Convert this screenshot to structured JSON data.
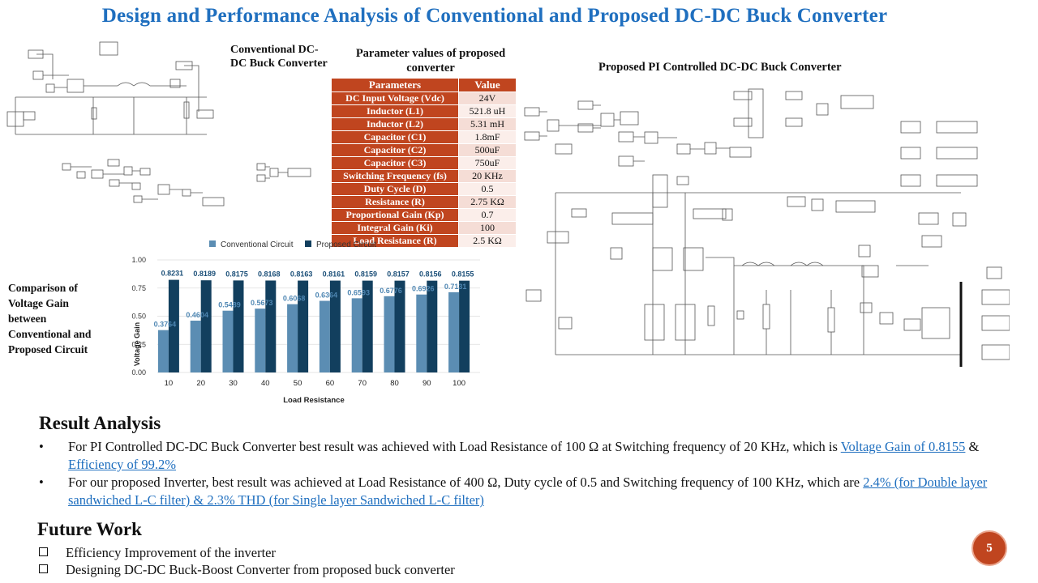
{
  "title": "Design and Performance Analysis of Conventional and Proposed DC-DC Buck Converter",
  "conventional_caption": "Conventional DC-DC Buck Converter",
  "proposed_caption": "Proposed PI Controlled DC-DC Buck Converter",
  "param_caption": "Parameter values of proposed converter",
  "param_table": {
    "headers": [
      "Parameters",
      "Value"
    ],
    "rows": [
      [
        "DC Input Voltage (Vdc)",
        "24V"
      ],
      [
        "Inductor (L1)",
        "521.8 uH"
      ],
      [
        "Inductor (L2)",
        "5.31 mH"
      ],
      [
        "Capacitor (C1)",
        "1.8mF"
      ],
      [
        "Capacitor (C2)",
        "500uF"
      ],
      [
        "Capacitor (C3)",
        "750uF"
      ],
      [
        "Switching Frequency (fs)",
        "20 KHz"
      ],
      [
        "Duty Cycle (D)",
        "0.5"
      ],
      [
        "Resistance (R)",
        "2.75 KΩ"
      ],
      [
        "Proportional Gain (Kp)",
        "0.7"
      ],
      [
        "Integral Gain (Ki)",
        "100"
      ],
      [
        "Load Resistance (R)",
        "2.5 KΩ"
      ]
    ]
  },
  "comparison_caption": "Comparison of Voltage Gain between Conventional and Proposed Circuit",
  "chart_data": {
    "type": "bar",
    "categories": [
      "10",
      "20",
      "30",
      "40",
      "50",
      "60",
      "70",
      "80",
      "90",
      "100"
    ],
    "series": [
      {
        "name": "Conventional Circuit",
        "values": [
          0.3764,
          0.4604,
          0.5489,
          0.5673,
          0.6068,
          0.6364,
          0.6593,
          0.6776,
          0.6926,
          0.7131
        ],
        "color": "#5b8db3"
      },
      {
        "name": "Proposed Circuit",
        "values": [
          0.8231,
          0.8189,
          0.8175,
          0.8168,
          0.8163,
          0.8161,
          0.8159,
          0.8157,
          0.8156,
          0.8155
        ],
        "color": "#123f5e"
      }
    ],
    "ylabel": "Voltage Gain",
    "xlabel": "Load Resistance",
    "ylim": [
      0,
      1
    ],
    "yticks": [
      "0.00",
      "0.25",
      "0.50",
      "0.75",
      "1.00"
    ],
    "grid": true,
    "legend": "top"
  },
  "result_analysis": {
    "heading": "Result Analysis",
    "bullet1_text": "For PI Controlled DC-DC Buck Converter best result was achieved with Load Resistance of 100 Ω at Switching frequency of 20 KHz, which is ",
    "bullet1_link1": "Voltage Gain of 0.8155",
    "bullet1_mid": " & ",
    "bullet1_link2": "Efficiency of 99.2%",
    "bullet2_text": "For our proposed Inverter, best result was achieved at Load Resistance of 400 Ω, Duty cycle of 0.5 and Switching frequency of 100 KHz,  which are ",
    "bullet2_link": "2.4% (for Double layer sandwiched L-C filter)  & 2.3% THD (for Single layer Sandwiched L-C filter)"
  },
  "future_work": {
    "heading": "Future Work",
    "items": [
      "Efficiency Improvement of the inverter",
      "Designing DC-DC Buck-Boost Converter from proposed buck converter"
    ]
  },
  "page_number": "5",
  "colors": {
    "title": "#1f6fbf",
    "accent": "#c0451f",
    "link": "#1f6fbf"
  }
}
